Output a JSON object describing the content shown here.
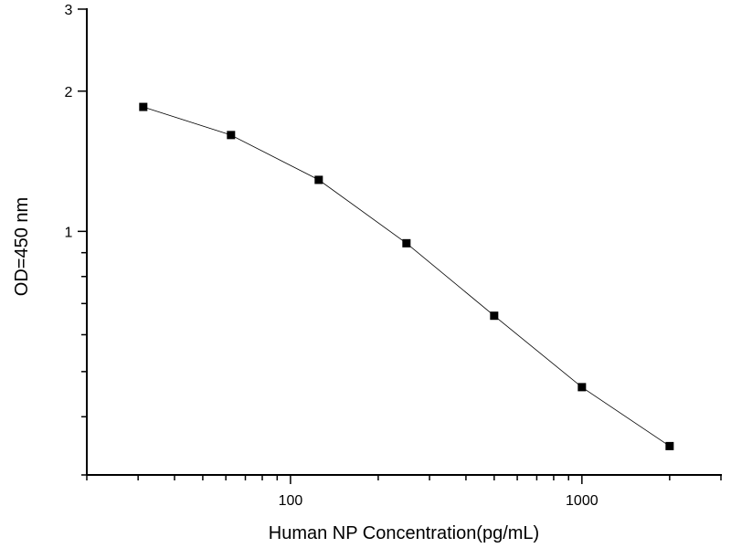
{
  "chart_data": {
    "type": "line",
    "title": "",
    "xlabel": "Human NP  Concentration(pg/mL)",
    "ylabel": "OD=450 nm",
    "xscale": "log",
    "yscale": "log",
    "xlim": [
      20,
      3000
    ],
    "ylim": [
      0.3,
      3
    ],
    "x_ticks": [
      {
        "value": 100,
        "label": "100"
      },
      {
        "value": 1000,
        "label": "1000"
      }
    ],
    "y_ticks": [
      {
        "value": 1,
        "label": "1"
      },
      {
        "value": 2,
        "label": "2"
      },
      {
        "value": 3,
        "label": "3"
      }
    ],
    "grid": false,
    "marker": "square",
    "color": "#000000",
    "series": [
      {
        "x": [
          31.25,
          62.5,
          125,
          250,
          500,
          1000,
          2000
        ],
        "y": [
          1.85,
          1.61,
          1.29,
          0.943,
          0.659,
          0.463,
          0.346
        ]
      }
    ]
  }
}
